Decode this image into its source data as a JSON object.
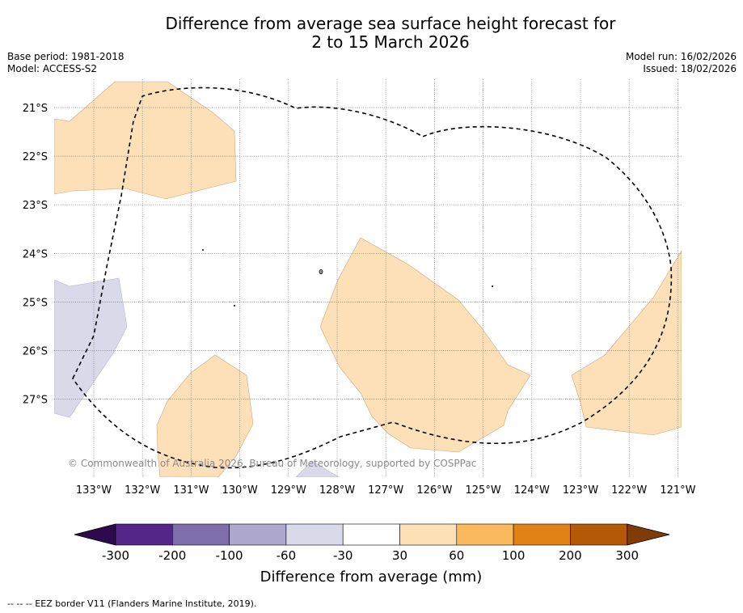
{
  "title": {
    "line1": "Difference from average sea surface height forecast for",
    "line2": "2 to 15 March 2026"
  },
  "meta_left": {
    "base_period": "Base period: 1981-2018",
    "model": "Model: ACCESS-S2"
  },
  "meta_right": {
    "model_run": "Model run: 16/02/2026",
    "issued": "Issued: 18/02/2026"
  },
  "map": {
    "lat_labels": [
      "21°S",
      "22°S",
      "23°S",
      "24°S",
      "25°S",
      "26°S",
      "27°S"
    ],
    "lon_labels": [
      "133°W",
      "132°W",
      "131°W",
      "130°W",
      "129°W",
      "128°W",
      "127°W",
      "126°W",
      "125°W",
      "124°W",
      "123°W",
      "122°W",
      "121°W"
    ],
    "copyright": "© Commonwealth of Australia 2026, Bureau of Meteorology, supported by COSPPac",
    "region_colors": {
      "positive_30_60": "#fde0b8",
      "negative_60_30": "#dad9ea",
      "eez_border": "#000000"
    }
  },
  "colorbar": {
    "title": "Difference from average (mm)",
    "ticks": [
      "-300",
      "-200",
      "-100",
      "-60",
      "-30",
      "30",
      "60",
      "100",
      "200",
      "300"
    ],
    "colors": [
      "#2d0a4e",
      "#54268a",
      "#7e6fab",
      "#aea8cf",
      "#dad9ea",
      "#ffffff",
      "#fee0b6",
      "#fbb95d",
      "#e08215",
      "#b45905",
      "#7f3b08"
    ]
  },
  "footnote": "--  --  -- EEZ border V11 (Flanders Marine Institute, 2019)."
}
